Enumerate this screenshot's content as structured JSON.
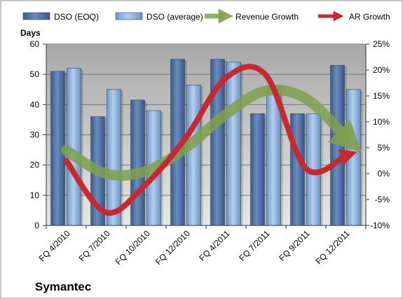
{
  "chart_data": {
    "type": "bar",
    "company": "Symantec",
    "ylabel": "Days",
    "categories": [
      "FQ 4/2010",
      "FQ 7/2010",
      "FQ 10/2010",
      "FQ 12/2010",
      "FQ 4/2011",
      "FQ 7/2011",
      "FQ 9/2011",
      "FQ 12/2011"
    ],
    "ylim": [
      0,
      60
    ],
    "y_ticks": [
      "0",
      "10",
      "20",
      "30",
      "40",
      "50",
      "60"
    ],
    "y2lim": [
      -10,
      25
    ],
    "y2_ticks": [
      "-10%",
      "-5%",
      "0%",
      "5%",
      "10%",
      "15%",
      "20%",
      "25%"
    ],
    "grid": true,
    "legend_position": "top",
    "series": [
      {
        "name": "DSO (EOQ)",
        "kind": "bar",
        "axis": "left",
        "color": "#4f6fa0",
        "values": [
          51,
          36,
          41.5,
          55,
          55,
          37,
          37,
          53
        ]
      },
      {
        "name": "DSO (average)",
        "kind": "bar",
        "axis": "left",
        "color": "#8fb3df",
        "values": [
          52,
          45,
          38,
          46.5,
          54,
          46,
          37,
          45
        ]
      },
      {
        "name": "Revenue Growth",
        "kind": "line",
        "axis": "right",
        "color": "#7fa04f",
        "values": [
          4.5,
          0,
          0.5,
          5,
          11.5,
          16,
          14.5,
          7
        ]
      },
      {
        "name": "AR Growth",
        "kind": "line",
        "axis": "right",
        "color": "#c42a32",
        "values": [
          2.5,
          -7.5,
          -2,
          7,
          18.5,
          19,
          1,
          3.5
        ]
      }
    ]
  }
}
